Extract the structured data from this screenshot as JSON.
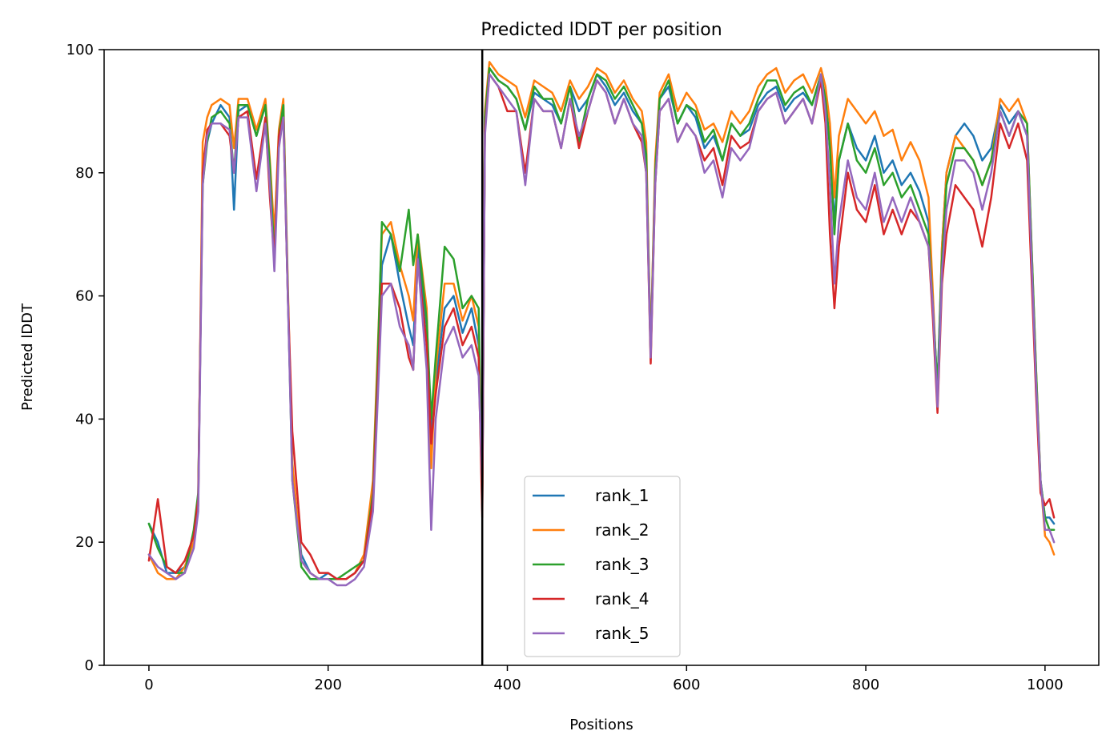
{
  "chart_data": {
    "type": "line",
    "title": "Predicted lDDT per position",
    "xlabel": "Positions",
    "ylabel": "Predicted lDDT",
    "xlim": [
      -50,
      1060
    ],
    "ylim": [
      0,
      100
    ],
    "x_ticks": [
      0,
      200,
      400,
      600,
      800,
      1000
    ],
    "y_ticks": [
      0,
      20,
      40,
      60,
      80,
      100
    ],
    "x_tick_labels": [
      "0",
      "200",
      "400",
      "600",
      "800",
      "1000"
    ],
    "y_tick_labels": [
      "0",
      "20",
      "40",
      "60",
      "80",
      "100"
    ],
    "grid": false,
    "legend_position": "lower-center",
    "chain_break": 372,
    "x": [
      0,
      10,
      20,
      30,
      40,
      50,
      55,
      60,
      65,
      70,
      80,
      90,
      95,
      100,
      110,
      120,
      130,
      135,
      140,
      145,
      150,
      155,
      160,
      170,
      180,
      190,
      200,
      210,
      220,
      230,
      240,
      250,
      255,
      260,
      270,
      280,
      290,
      295,
      300,
      310,
      315,
      320,
      330,
      340,
      350,
      360,
      368,
      372,
      375,
      380,
      390,
      400,
      410,
      420,
      430,
      440,
      450,
      460,
      470,
      480,
      490,
      500,
      510,
      520,
      530,
      540,
      550,
      555,
      560,
      565,
      570,
      580,
      590,
      600,
      610,
      620,
      630,
      640,
      650,
      660,
      670,
      680,
      690,
      700,
      710,
      720,
      730,
      740,
      750,
      755,
      760,
      765,
      770,
      780,
      790,
      800,
      810,
      820,
      830,
      840,
      850,
      860,
      870,
      875,
      880,
      885,
      890,
      900,
      910,
      920,
      930,
      940,
      950,
      960,
      970,
      980,
      990,
      995,
      1000,
      1005,
      1010
    ],
    "series": [
      {
        "name": "rank_1",
        "color": "#1f77b4",
        "values": [
          23,
          20,
          15,
          15,
          16,
          20,
          26,
          82,
          85,
          88,
          91,
          89,
          74,
          90,
          91,
          86,
          91,
          80,
          70,
          85,
          91,
          60,
          32,
          18,
          15,
          14,
          15,
          14,
          14,
          15,
          17,
          27,
          45,
          65,
          70,
          62,
          55,
          52,
          68,
          55,
          38,
          46,
          58,
          60,
          54,
          58,
          52,
          25,
          88,
          97,
          95,
          94,
          92,
          87,
          93,
          92,
          91,
          88,
          94,
          90,
          92,
          96,
          94,
          91,
          93,
          90,
          88,
          82,
          52,
          80,
          92,
          94,
          88,
          91,
          89,
          84,
          86,
          82,
          88,
          86,
          87,
          91,
          93,
          94,
          90,
          92,
          93,
          91,
          96,
          92,
          85,
          72,
          82,
          88,
          84,
          82,
          86,
          80,
          82,
          78,
          80,
          77,
          72,
          58,
          45,
          68,
          80,
          86,
          88,
          86,
          82,
          84,
          91,
          88,
          90,
          86,
          45,
          30,
          24,
          24,
          23
        ]
      },
      {
        "name": "rank_2",
        "color": "#ff7f0e",
        "values": [
          18,
          15,
          14,
          14,
          16,
          20,
          26,
          85,
          89,
          91,
          92,
          91,
          84,
          92,
          92,
          87,
          92,
          82,
          70,
          87,
          92,
          62,
          33,
          17,
          15,
          14,
          14,
          14,
          14,
          15,
          18,
          30,
          50,
          70,
          72,
          65,
          60,
          56,
          70,
          58,
          32,
          48,
          62,
          62,
          56,
          60,
          55,
          28,
          90,
          98,
          96,
          95,
          94,
          89,
          95,
          94,
          93,
          90,
          95,
          92,
          94,
          97,
          96,
          93,
          95,
          92,
          90,
          85,
          51,
          82,
          93,
          96,
          90,
          93,
          91,
          87,
          88,
          85,
          90,
          88,
          90,
          94,
          96,
          97,
          93,
          95,
          96,
          93,
          97,
          94,
          88,
          76,
          86,
          92,
          90,
          88,
          90,
          86,
          87,
          82,
          85,
          82,
          76,
          60,
          43,
          68,
          80,
          86,
          84,
          82,
          78,
          82,
          92,
          90,
          92,
          88,
          48,
          30,
          21,
          20,
          18
        ]
      },
      {
        "name": "rank_3",
        "color": "#2ca02c",
        "values": [
          23,
          19,
          16,
          15,
          15,
          22,
          28,
          78,
          85,
          89,
          90,
          88,
          80,
          91,
          91,
          86,
          91,
          81,
          66,
          86,
          91,
          61,
          30,
          16,
          14,
          14,
          14,
          14,
          15,
          16,
          17,
          28,
          48,
          72,
          70,
          64,
          74,
          65,
          70,
          56,
          40,
          50,
          68,
          66,
          58,
          60,
          58,
          26,
          89,
          97,
          95,
          94,
          92,
          87,
          94,
          92,
          92,
          88,
          94,
          85,
          92,
          96,
          95,
          92,
          94,
          91,
          88,
          83,
          50,
          80,
          92,
          95,
          88,
          91,
          90,
          85,
          87,
          82,
          88,
          86,
          88,
          92,
          95,
          95,
          91,
          93,
          94,
          91,
          96,
          92,
          84,
          70,
          82,
          88,
          82,
          80,
          84,
          78,
          80,
          76,
          78,
          74,
          70,
          58,
          45,
          66,
          78,
          84,
          84,
          82,
          78,
          82,
          90,
          86,
          90,
          88,
          48,
          30,
          24,
          22,
          22
        ]
      },
      {
        "name": "rank_4",
        "color": "#d62728",
        "values": [
          17,
          27,
          16,
          15,
          17,
          21,
          27,
          80,
          87,
          88,
          88,
          86,
          80,
          89,
          90,
          79,
          89,
          76,
          66,
          86,
          89,
          60,
          38,
          20,
          18,
          15,
          15,
          14,
          14,
          15,
          17,
          27,
          45,
          62,
          62,
          58,
          50,
          48,
          66,
          52,
          36,
          44,
          55,
          58,
          52,
          55,
          50,
          24,
          87,
          96,
          94,
          90,
          90,
          80,
          92,
          90,
          90,
          84,
          92,
          84,
          90,
          95,
          93,
          88,
          92,
          88,
          85,
          80,
          49,
          78,
          90,
          92,
          85,
          88,
          86,
          82,
          84,
          78,
          86,
          84,
          85,
          90,
          92,
          93,
          88,
          90,
          92,
          88,
          95,
          88,
          70,
          58,
          68,
          80,
          74,
          72,
          78,
          70,
          74,
          70,
          74,
          72,
          68,
          56,
          41,
          62,
          70,
          78,
          76,
          74,
          68,
          76,
          88,
          84,
          88,
          82,
          44,
          28,
          26,
          27,
          24
        ]
      },
      {
        "name": "rank_5",
        "color": "#9467bd",
        "values": [
          18,
          16,
          15,
          14,
          15,
          19,
          25,
          78,
          86,
          88,
          88,
          87,
          80,
          89,
          89,
          77,
          88,
          78,
          64,
          84,
          89,
          60,
          30,
          17,
          15,
          14,
          14,
          13,
          13,
          14,
          16,
          25,
          42,
          60,
          62,
          55,
          52,
          48,
          66,
          48,
          22,
          40,
          52,
          55,
          50,
          52,
          47,
          30,
          86,
          96,
          94,
          92,
          90,
          78,
          92,
          90,
          90,
          84,
          92,
          86,
          90,
          95,
          93,
          88,
          92,
          88,
          86,
          80,
          50,
          78,
          90,
          92,
          85,
          88,
          86,
          80,
          82,
          76,
          84,
          82,
          84,
          90,
          92,
          93,
          88,
          90,
          92,
          88,
          96,
          90,
          78,
          62,
          72,
          82,
          76,
          74,
          80,
          72,
          76,
          72,
          76,
          72,
          68,
          58,
          42,
          64,
          74,
          82,
          82,
          80,
          74,
          80,
          90,
          86,
          90,
          86,
          46,
          30,
          22,
          22,
          20
        ]
      }
    ]
  }
}
